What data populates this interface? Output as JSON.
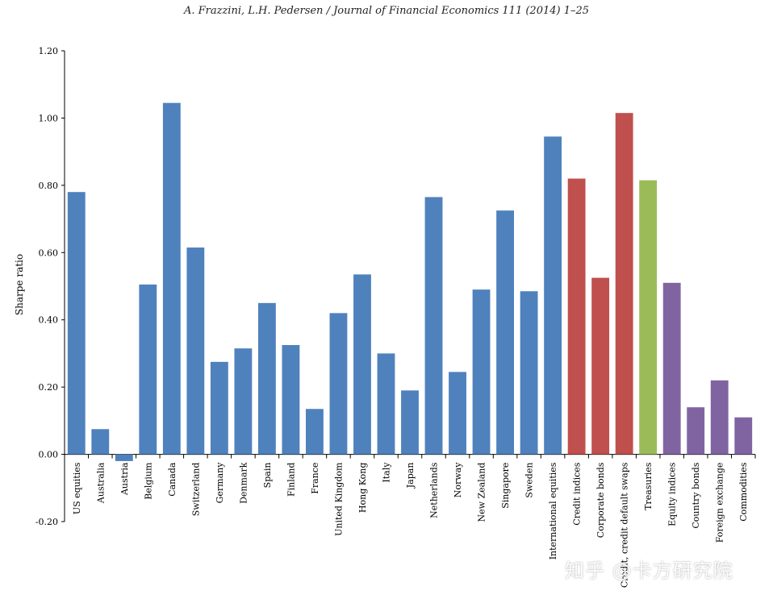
{
  "header": {
    "citation": "A. Frazzini, L.H. Pedersen / Journal of Financial Economics 111 (2014) 1–25"
  },
  "watermark": {
    "text": "知乎 @卡方研究院"
  },
  "chart_data": {
    "type": "bar",
    "title": "",
    "xlabel": "",
    "ylabel": "Sharpe ratio",
    "ylim": [
      -0.2,
      1.2
    ],
    "yticks": [
      -0.2,
      0.0,
      0.2,
      0.4,
      0.6,
      0.8,
      1.0,
      1.2
    ],
    "ytick_labels": [
      "-0.20",
      "0.00",
      "0.20",
      "0.40",
      "0.60",
      "0.80",
      "1.00",
      "1.20"
    ],
    "grid": false,
    "legend": "none",
    "colors": {
      "equities": "#4f81bd",
      "credit": "#c0504d",
      "treasuries": "#9bbb59",
      "other": "#8064a2"
    },
    "categories": [
      "US equities",
      "Australia",
      "Austria",
      "Belgium",
      "Canada",
      "Switzerland",
      "Germany",
      "Denmark",
      "Spain",
      "Finland",
      "France",
      "United Kingdom",
      "Hong Kong",
      "Italy",
      "Japan",
      "Netherlands",
      "Norway",
      "New Zealand",
      "Singapore",
      "Sweden",
      "International equities",
      "Credit indices",
      "Corporate bonds",
      "Credit, credit default swaps",
      "Treasuries",
      "Equity indices",
      "Country bonds",
      "Foreign exchange",
      "Commodities"
    ],
    "values": [
      0.78,
      0.075,
      -0.02,
      0.505,
      1.045,
      0.615,
      0.275,
      0.315,
      0.45,
      0.325,
      0.135,
      0.42,
      0.535,
      0.3,
      0.19,
      0.765,
      0.245,
      0.49,
      0.725,
      0.485,
      0.945,
      0.82,
      0.525,
      1.015,
      0.815,
      0.51,
      0.14,
      0.22,
      0.11
    ],
    "groups": [
      "equities",
      "equities",
      "equities",
      "equities",
      "equities",
      "equities",
      "equities",
      "equities",
      "equities",
      "equities",
      "equities",
      "equities",
      "equities",
      "equities",
      "equities",
      "equities",
      "equities",
      "equities",
      "equities",
      "equities",
      "equities",
      "credit",
      "credit",
      "credit",
      "treasuries",
      "other",
      "other",
      "other",
      "other"
    ]
  }
}
